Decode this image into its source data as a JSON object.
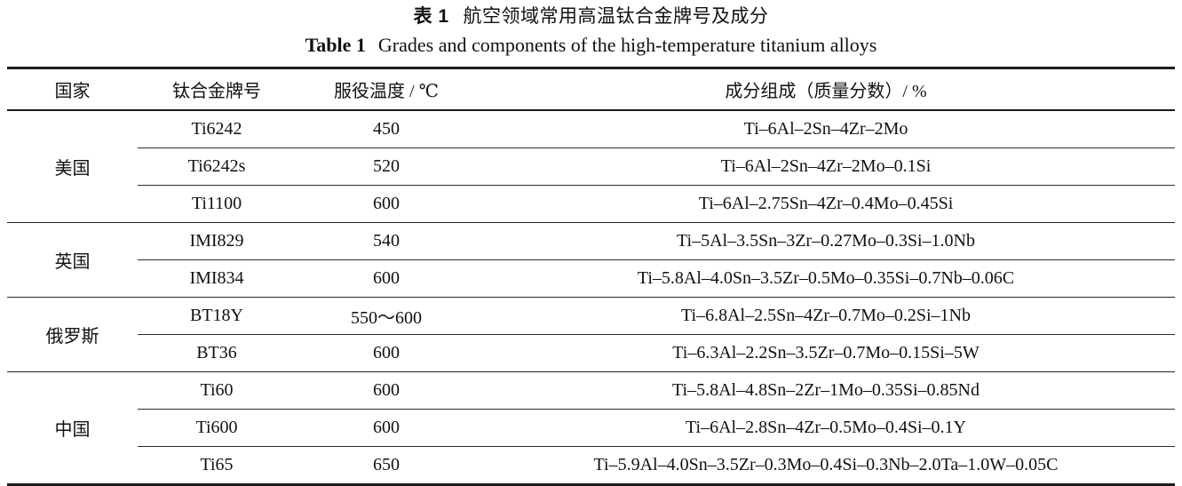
{
  "title": {
    "zh_label": "表 1",
    "zh_text": "航空领域常用高温钛合金牌号及成分",
    "en_label": "Table 1",
    "en_text": "Grades and components of the high-temperature titanium alloys"
  },
  "table": {
    "headers": [
      "国家",
      "钛合金牌号",
      "服役温度 / ℃",
      "成分组成（质量分数）/ %"
    ],
    "groups": [
      {
        "country": "美国",
        "rows": [
          {
            "grade": "Ti6242",
            "temp": "450",
            "composition": "Ti–6Al–2Sn–4Zr–2Mo"
          },
          {
            "grade": "Ti6242s",
            "temp": "520",
            "composition": "Ti–6Al–2Sn–4Zr–2Mo–0.1Si"
          },
          {
            "grade": "Ti1100",
            "temp": "600",
            "composition": "Ti–6Al–2.75Sn–4Zr–0.4Mo–0.45Si"
          }
        ]
      },
      {
        "country": "英国",
        "rows": [
          {
            "grade": "IMI829",
            "temp": "540",
            "composition": "Ti–5Al–3.5Sn–3Zr–0.27Mo–0.3Si–1.0Nb"
          },
          {
            "grade": "IMI834",
            "temp": "600",
            "composition": "Ti–5.8Al–4.0Sn–3.5Zr–0.5Mo–0.35Si–0.7Nb–0.06C"
          }
        ]
      },
      {
        "country": "俄罗斯",
        "rows": [
          {
            "grade": "BT18Y",
            "temp": "550～600",
            "composition": "Ti–6.8Al–2.5Sn–4Zr–0.7Mo–0.2Si–1Nb"
          },
          {
            "grade": "BT36",
            "temp": "600",
            "composition": "Ti–6.3Al–2.2Sn–3.5Zr–0.7Mo–0.15Si–5W"
          }
        ]
      },
      {
        "country": "中国",
        "rows": [
          {
            "grade": "Ti60",
            "temp": "600",
            "composition": "Ti–5.8Al–4.8Sn–2Zr–1Mo–0.35Si–0.85Nd"
          },
          {
            "grade": "Ti600",
            "temp": "600",
            "composition": "Ti–6Al–2.8Sn–4Zr–0.5Mo–0.4Si–0.1Y"
          },
          {
            "grade": "Ti65",
            "temp": "650",
            "composition": "Ti–5.9Al–4.0Sn–3.5Zr–0.3Mo–0.4Si–0.3Nb–2.0Ta–1.0W–0.05C"
          }
        ]
      }
    ]
  },
  "colors": {
    "text": "#111111",
    "rule": "#1c1c1c",
    "background": "#ffffff"
  }
}
